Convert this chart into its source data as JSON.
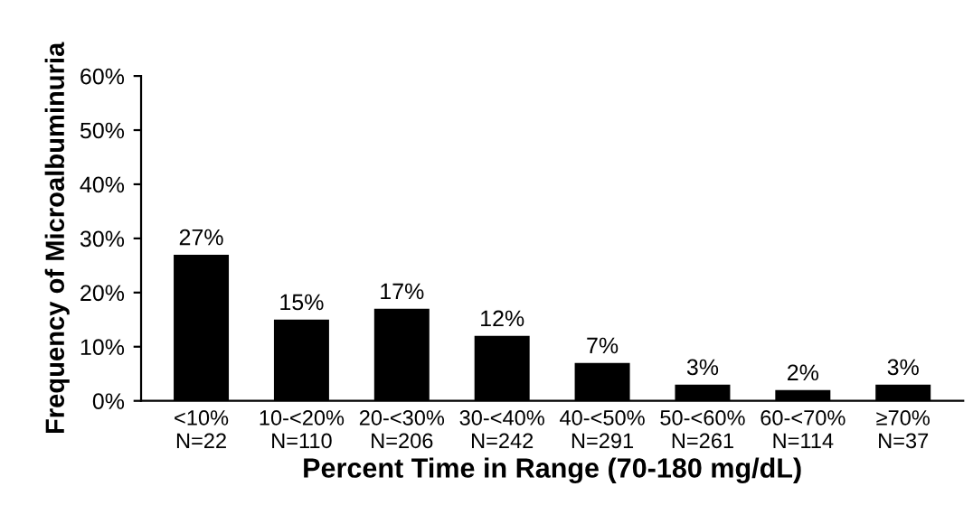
{
  "chart_data": {
    "type": "bar",
    "xlabel": "Percent Time in Range (70-180 mg/dL)",
    "ylabel": "Frequency of Microalbuminuria",
    "categories": [
      "<10%\nN=22",
      "10-<20%\nN=110",
      "20-<30%\nN=206",
      "30-<40%\nN=242",
      "40-<50%\nN=291",
      "50-<60%\nN=261",
      "60-<70%\nN=114",
      "≥70%\nN=37"
    ],
    "values": [
      27,
      15,
      17,
      12,
      7,
      3,
      2,
      3
    ],
    "value_labels": [
      "27%",
      "15%",
      "17%",
      "12%",
      "7%",
      "3%",
      "2%",
      "3%"
    ],
    "color": "#000000",
    "ylim": [
      0,
      60
    ],
    "yticks": [
      {
        "value": 0,
        "label": "0%"
      },
      {
        "value": 10,
        "label": "10%"
      },
      {
        "value": 20,
        "label": "20%"
      },
      {
        "value": 30,
        "label": "30%"
      },
      {
        "value": 40,
        "label": "40%"
      },
      {
        "value": 50,
        "label": "50%"
      },
      {
        "value": 60,
        "label": "60%"
      }
    ],
    "grid": false
  }
}
